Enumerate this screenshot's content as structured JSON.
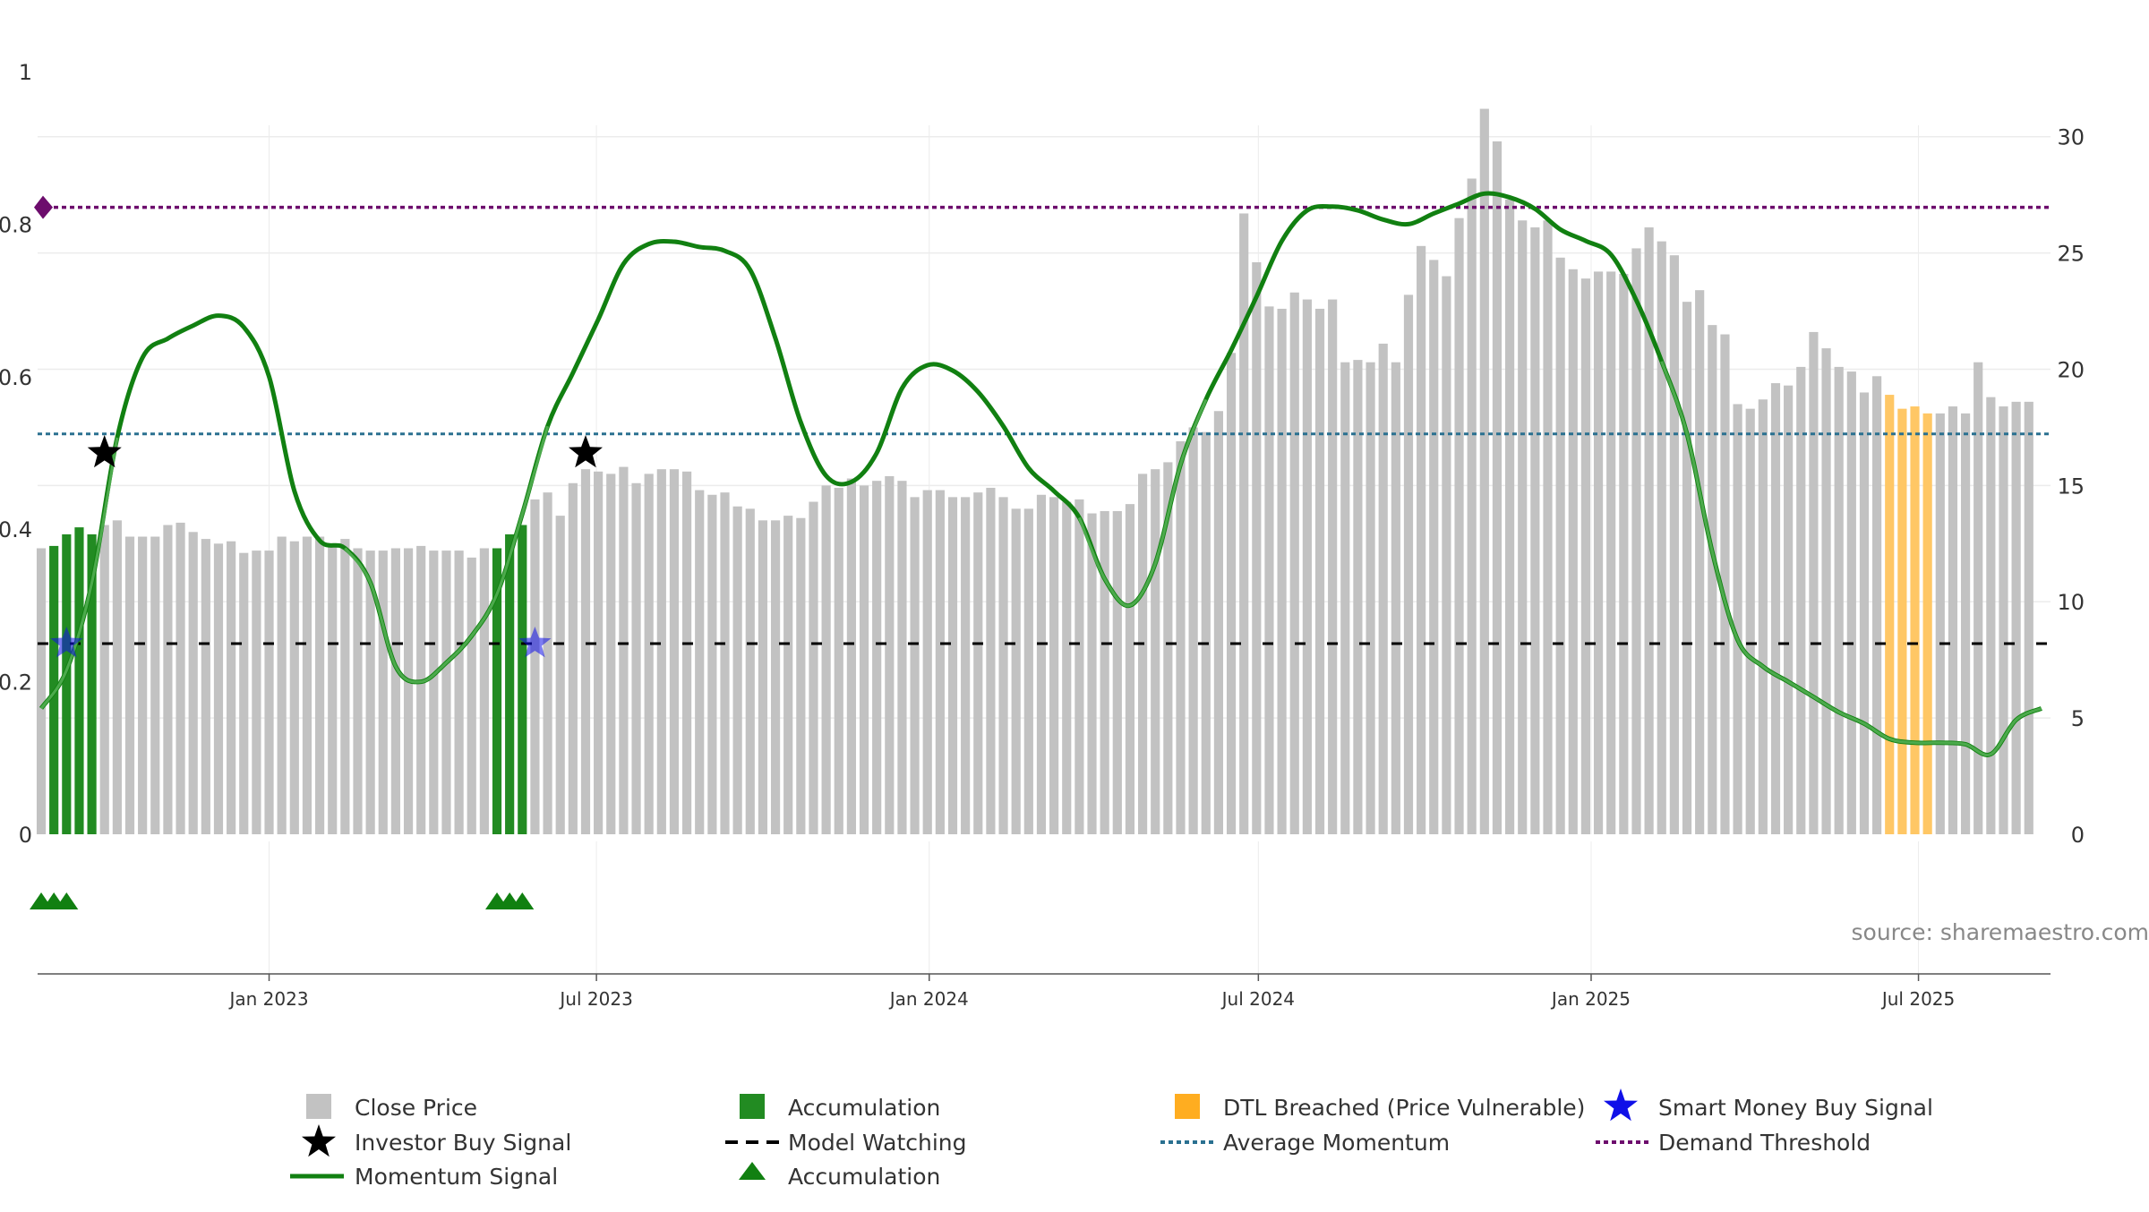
{
  "chart_data": {
    "type": "bar",
    "title": "",
    "source": "source: sharemaestro.com",
    "left_axis": {
      "ylim": [
        0,
        1
      ],
      "ticks": [
        "0",
        "0.2",
        "0.4",
        "0.6",
        "0.8",
        "1"
      ]
    },
    "right_axis": {
      "ylim": [
        0,
        32.8
      ],
      "ticks": [
        "0",
        "5",
        "10",
        "15",
        "20",
        "25",
        "30"
      ]
    },
    "x_range": [
      "2022-08-26",
      "2025-09-12"
    ],
    "x_ticks": [
      {
        "date": "2023-01-01",
        "label": "Jan 2023"
      },
      {
        "date": "2023-07-01",
        "label": "Jul 2023"
      },
      {
        "date": "2024-01-01",
        "label": "Jan 2024"
      },
      {
        "date": "2024-07-01",
        "label": "Jul 2024"
      },
      {
        "date": "2025-01-01",
        "label": "Jan 2025"
      },
      {
        "date": "2025-07-01",
        "label": "Jul 2025"
      }
    ],
    "weeks_start": "2022-08-28",
    "close_price": [
      12.3,
      12.4,
      12.9,
      13.2,
      12.9,
      13.3,
      13.5,
      12.8,
      12.8,
      12.8,
      13.3,
      13.4,
      13.0,
      12.7,
      12.5,
      12.6,
      12.1,
      12.2,
      12.2,
      12.8,
      12.6,
      12.8,
      12.8,
      12.5,
      12.7,
      12.3,
      12.2,
      12.2,
      12.3,
      12.3,
      12.4,
      12.2,
      12.2,
      12.2,
      11.9,
      12.3,
      12.3,
      12.9,
      13.3,
      14.4,
      14.7,
      13.7,
      15.1,
      15.7,
      15.6,
      15.5,
      15.8,
      15.1,
      15.5,
      15.7,
      15.7,
      15.6,
      14.8,
      14.6,
      14.7,
      14.1,
      14.0,
      13.5,
      13.5,
      13.7,
      13.6,
      14.3,
      15.0,
      14.9,
      15.3,
      15.0,
      15.2,
      15.4,
      15.2,
      14.5,
      14.8,
      14.8,
      14.5,
      14.5,
      14.7,
      14.9,
      14.5,
      14.0,
      14.0,
      14.6,
      14.5,
      14.3,
      14.4,
      13.8,
      13.9,
      13.9,
      14.2,
      15.5,
      15.7,
      16.0,
      16.9,
      17.5,
      17.3,
      18.2,
      20.7,
      26.7,
      24.6,
      22.7,
      22.6,
      23.3,
      23.0,
      22.6,
      23.0,
      20.3,
      20.4,
      20.3,
      21.1,
      20.3,
      23.2,
      25.3,
      24.7,
      24.0,
      26.5,
      28.2,
      31.2,
      29.8,
      27.3,
      26.4,
      26.1,
      26.4,
      24.8,
      24.3,
      23.9,
      24.2,
      24.2,
      24.1,
      25.2,
      26.1,
      25.5,
      24.9,
      22.9,
      23.4,
      21.9,
      21.5,
      18.5,
      18.3,
      18.7,
      19.4,
      19.3,
      20.1,
      21.6,
      20.9,
      20.1,
      19.9,
      19.0,
      19.7,
      18.9,
      18.3,
      18.4,
      18.1,
      18.1,
      18.4,
      18.1,
      20.3,
      18.8,
      18.4,
      18.6,
      18.6
    ],
    "bar_states": "gaaaagggggggggggggggggggggggggggggggaaagggggggggggggggggggggggggggggggggggggggggggggggggggggggggggggggggggggggggggggggggggggggggggggggggggggggggggbbbbgggggggggggggggggggggggggggggggggggggggggggggggggggggggggggggggggg",
    "momentum": {
      "x": [
        "2022-08-28",
        "2022-09-11",
        "2022-09-25",
        "2022-10-09",
        "2022-10-23",
        "2022-11-06",
        "2022-11-20",
        "2022-12-04",
        "2022-12-18",
        "2023-01-01",
        "2023-01-15",
        "2023-01-29",
        "2023-02-12",
        "2023-02-26",
        "2023-03-12",
        "2023-03-26",
        "2023-04-09",
        "2023-04-23",
        "2023-05-07",
        "2023-05-21",
        "2023-06-04",
        "2023-06-18",
        "2023-07-02",
        "2023-07-16",
        "2023-07-30",
        "2023-08-13",
        "2023-08-27",
        "2023-09-10",
        "2023-09-24",
        "2023-10-08",
        "2023-10-22",
        "2023-11-05",
        "2023-11-19",
        "2023-12-03",
        "2023-12-17",
        "2023-12-31",
        "2024-01-14",
        "2024-01-28",
        "2024-02-11",
        "2024-02-25",
        "2024-03-10",
        "2024-03-24",
        "2024-04-07",
        "2024-04-21",
        "2024-05-05",
        "2024-05-19",
        "2024-06-02",
        "2024-06-16",
        "2024-06-30",
        "2024-07-14",
        "2024-07-28",
        "2024-08-11",
        "2024-08-25",
        "2024-09-08",
        "2024-09-22",
        "2024-10-06",
        "2024-10-20",
        "2024-11-03",
        "2024-11-17",
        "2024-12-01",
        "2024-12-15",
        "2024-12-29",
        "2025-01-12",
        "2025-01-26",
        "2025-02-09",
        "2025-02-23",
        "2025-03-09",
        "2025-03-23",
        "2025-04-06",
        "2025-04-20",
        "2025-05-04",
        "2025-05-18",
        "2025-06-01",
        "2025-06-15",
        "2025-06-29",
        "2025-07-13",
        "2025-07-27",
        "2025-08-10",
        "2025-08-24",
        "2025-09-07"
      ],
      "y": [
        0.165,
        0.215,
        0.33,
        0.52,
        0.625,
        0.65,
        0.667,
        0.68,
        0.665,
        0.6,
        0.45,
        0.385,
        0.375,
        0.33,
        0.22,
        0.2,
        0.225,
        0.26,
        0.315,
        0.42,
        0.535,
        0.605,
        0.675,
        0.748,
        0.774,
        0.777,
        0.77,
        0.765,
        0.74,
        0.65,
        0.54,
        0.47,
        0.462,
        0.5,
        0.585,
        0.615,
        0.608,
        0.58,
        0.535,
        0.48,
        0.45,
        0.415,
        0.335,
        0.3,
        0.355,
        0.485,
        0.57,
        0.635,
        0.705,
        0.778,
        0.818,
        0.823,
        0.818,
        0.806,
        0.8,
        0.814,
        0.827,
        0.84,
        0.835,
        0.82,
        0.793,
        0.778,
        0.76,
        0.7,
        0.62,
        0.525,
        0.37,
        0.255,
        0.22,
        0.2,
        0.18,
        0.16,
        0.145,
        0.125,
        0.12,
        0.12,
        0.118,
        0.105,
        0.15,
        0.165
      ]
    },
    "smart_money_signals": [
      {
        "date": "2022-09-11",
        "y": 0.25
      },
      {
        "date": "2023-05-28",
        "y": 0.25
      }
    ],
    "investor_signals": [
      {
        "date": "2022-10-02",
        "y": 0.5
      },
      {
        "date": "2023-06-25",
        "y": 0.5
      }
    ],
    "accumulation_markers": [
      "2022-08-28",
      "2022-09-04",
      "2022-09-11",
      "2023-05-07",
      "2023-05-14",
      "2023-05-21"
    ],
    "average_momentum": 0.525,
    "model_watching": 0.25,
    "demand_threshold": 0.822,
    "colors": {
      "close_price": "#c2c2c2",
      "accumulation": "#228b22",
      "dtl_breached": "#ffc765",
      "momentum": "#118011",
      "momentum_accum": "#4caa4c",
      "smart_money": "#1010e8",
      "investor": "#000000",
      "average_momentum": "#2a7090",
      "model_watching": "#000000",
      "demand_threshold": "#6d0d6d",
      "grid": "#ececec",
      "axis": "#555555"
    },
    "legend": {
      "close_price": "Close Price",
      "investor_buy_signal": "Investor Buy Signal",
      "momentum_signal": "Momentum Signal",
      "accumulation_bar": "Accumulation",
      "model_watching": "Model Watching",
      "accumulation_marker": "Accumulation",
      "dtl_breached": "DTL Breached (Price Vulnerable)",
      "average_momentum": "Average Momentum",
      "smart_money_buy_signal": "Smart Money Buy Signal",
      "demand_threshold": "Demand Threshold"
    }
  }
}
